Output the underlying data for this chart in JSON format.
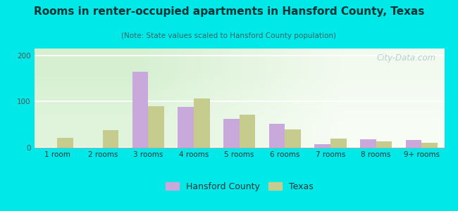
{
  "title": "Rooms in renter-occupied apartments in Hansford County, Texas",
  "subtitle": "(Note: State values scaled to Hansford County population)",
  "categories": [
    "1 room",
    "2 rooms",
    "3 rooms",
    "4 rooms",
    "5 rooms",
    "6 rooms",
    "7 rooms",
    "8 rooms",
    "9+ rooms"
  ],
  "hansford": [
    0,
    0,
    165,
    88,
    62,
    52,
    8,
    18,
    17
  ],
  "texas": [
    22,
    38,
    90,
    107,
    72,
    40,
    20,
    14,
    10
  ],
  "hansford_color": "#c9a8dc",
  "texas_color": "#c5cc8e",
  "background_outer": "#00e8e8",
  "ylim": [
    0,
    215
  ],
  "yticks": [
    0,
    100,
    200
  ],
  "bar_width": 0.35,
  "watermark": "City-Data.com",
  "legend_hansford": "Hansford County",
  "legend_texas": "Texas",
  "title_color": "#003333",
  "subtitle_color": "#336666"
}
